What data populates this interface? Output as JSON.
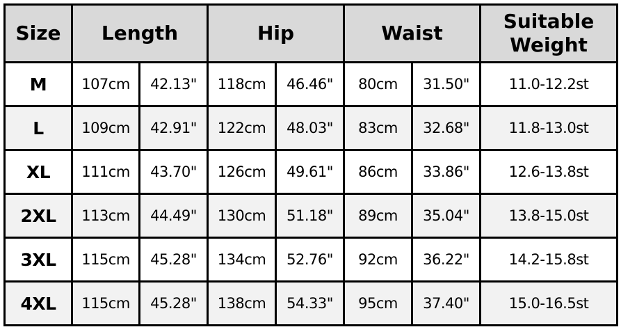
{
  "headers": {
    "size": "Size",
    "length": "Length",
    "hip": "Hip",
    "waist": "Waist",
    "weight_line1": "Suitable",
    "weight_line2": "Weight"
  },
  "rows": [
    {
      "size": "M",
      "length_cm": "107cm",
      "length_in": "42.13\"",
      "hip_cm": "118cm",
      "hip_in": "46.46\"",
      "waist_cm": "80cm",
      "waist_in": "31.50\"",
      "weight": "11.0-12.2st"
    },
    {
      "size": "L",
      "length_cm": "109cm",
      "length_in": "42.91\"",
      "hip_cm": "122cm",
      "hip_in": "48.03\"",
      "waist_cm": "83cm",
      "waist_in": "32.68\"",
      "weight": "11.8-13.0st"
    },
    {
      "size": "XL",
      "length_cm": "111cm",
      "length_in": "43.70\"",
      "hip_cm": "126cm",
      "hip_in": "49.61\"",
      "waist_cm": "86cm",
      "waist_in": "33.86\"",
      "weight": "12.6-13.8st"
    },
    {
      "size": "2XL",
      "length_cm": "113cm",
      "length_in": "44.49\"",
      "hip_cm": "130cm",
      "hip_in": "51.18\"",
      "waist_cm": "89cm",
      "waist_in": "35.04\"",
      "weight": "13.8-15.0st"
    },
    {
      "size": "3XL",
      "length_cm": "115cm",
      "length_in": "45.28\"",
      "hip_cm": "134cm",
      "hip_in": "52.76\"",
      "waist_cm": "92cm",
      "waist_in": "36.22\"",
      "weight": "14.2-15.8st"
    },
    {
      "size": "4XL",
      "length_cm": "115cm",
      "length_in": "45.28\"",
      "hip_cm": "138cm",
      "hip_in": "54.33\"",
      "waist_cm": "95cm",
      "waist_in": "37.40\"",
      "weight": "15.0-16.5st"
    }
  ],
  "colors": {
    "header_bg": "#d9d9d9",
    "alt_row_bg": "#f2f2f2",
    "border": "#000000"
  }
}
